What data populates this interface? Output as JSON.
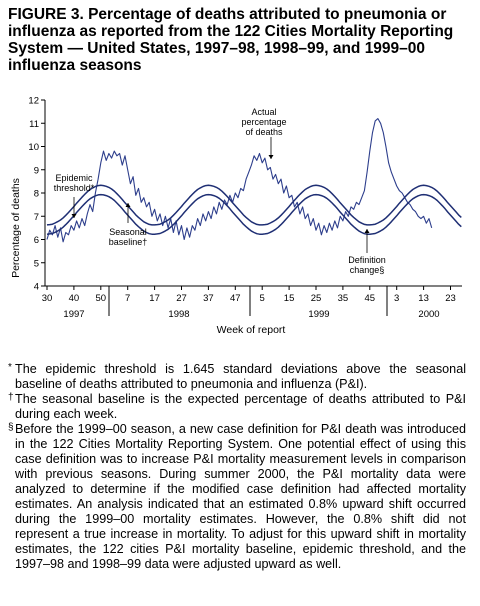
{
  "title": "FIGURE 3. Percentage of deaths attributed to pneumonia or influenza as reported from the 122 Cities Mortality Reporting System — United States, 1997–98, 1998–99, and 1999–00 influenza seasons",
  "chart_data": {
    "type": "line",
    "ylabel": "Percentage of deaths",
    "xlabel": "Week of report",
    "ylim": [
      4,
      12
    ],
    "yticks": [
      4,
      5,
      6,
      7,
      8,
      9,
      10,
      11,
      12
    ],
    "x_tick_labels": [
      "30",
      "40",
      "50",
      "7",
      "17",
      "27",
      "37",
      "47",
      "5",
      "15",
      "25",
      "35",
      "45",
      "3",
      "13",
      "23"
    ],
    "year_labels": [
      "1997",
      "1998",
      "1999",
      "2000"
    ],
    "grid": false,
    "legend": "none",
    "annotations": {
      "epidemic_threshold": [
        "Epidemic",
        "threshold*"
      ],
      "seasonal_baseline": [
        "Seasonal",
        "baseline†"
      ],
      "actual_percentage": [
        "Actual",
        "percentage",
        "of deaths"
      ],
      "definition_change": [
        "Definition",
        "change§"
      ]
    },
    "week_index_start": "1997 week 30",
    "week_index_step": 1,
    "series": [
      {
        "key": "actual",
        "values": [
          6.0,
          6.4,
          6.2,
          6.6,
          6.1,
          6.5,
          5.9,
          6.3,
          6.2,
          6.6,
          6.4,
          6.8,
          6.5,
          6.9,
          6.6,
          7.1,
          7.5,
          7.2,
          8.0,
          8.6,
          9.3,
          9.8,
          9.4,
          9.7,
          9.5,
          9.8,
          9.6,
          9.7,
          9.2,
          9.6,
          9.0,
          8.4,
          8.7,
          7.9,
          8.2,
          7.6,
          7.8,
          7.4,
          7.6,
          7.0,
          7.3,
          6.8,
          7.1,
          6.6,
          7.0,
          6.5,
          6.9,
          6.3,
          6.8,
          6.2,
          6.6,
          6.0,
          6.5,
          6.1,
          6.6,
          6.4,
          6.9,
          6.6,
          7.1,
          6.8,
          7.2,
          6.9,
          7.4,
          7.1,
          7.6,
          7.3,
          7.7,
          7.5,
          7.9,
          7.6,
          8.0,
          7.8,
          8.2,
          8.1,
          8.6,
          8.9,
          9.2,
          9.6,
          9.4,
          9.7,
          9.3,
          9.5,
          9.0,
          9.1,
          8.6,
          8.8,
          8.4,
          8.6,
          8.0,
          8.3,
          7.8,
          7.9,
          7.4,
          7.6,
          7.1,
          7.4,
          6.9,
          7.1,
          6.6,
          6.9,
          6.4,
          6.7,
          6.2,
          6.6,
          6.3,
          6.7,
          6.4,
          6.8,
          6.5,
          7.0,
          6.8,
          7.2,
          7.0,
          7.4,
          7.3,
          7.6,
          7.5,
          7.8,
          8.1,
          8.9,
          9.8,
          10.6,
          11.1,
          11.2,
          11.0,
          10.6,
          10.0,
          9.3,
          8.9,
          8.6,
          8.3,
          8.1,
          8.0,
          7.8,
          7.6,
          7.5,
          7.3,
          7.2,
          7.0,
          6.9,
          7.0,
          6.7,
          6.9,
          6.5
        ]
      },
      {
        "key": "epidemic-threshold",
        "values": [
          6.63,
          6.64,
          6.66,
          6.71,
          6.77,
          6.84,
          6.93,
          7.04,
          7.16,
          7.29,
          7.42,
          7.56,
          7.69,
          7.82,
          7.94,
          8.05,
          8.15,
          8.22,
          8.28,
          8.32,
          8.33,
          8.32,
          8.29,
          8.24,
          8.17,
          8.08,
          7.97,
          7.85,
          7.72,
          7.58,
          7.45,
          7.32,
          7.19,
          7.06,
          6.95,
          6.85,
          6.76,
          6.7,
          6.65,
          6.63,
          6.63,
          6.64,
          6.66,
          6.71,
          6.77,
          6.84,
          6.93,
          7.04,
          7.16,
          7.29,
          7.42,
          7.56,
          7.69,
          7.82,
          7.94,
          8.05,
          8.15,
          8.22,
          8.28,
          8.32,
          8.33,
          8.32,
          8.29,
          8.24,
          8.17,
          8.08,
          7.97,
          7.85,
          7.72,
          7.58,
          7.45,
          7.32,
          7.19,
          7.06,
          6.95,
          6.85,
          6.76,
          6.7,
          6.65,
          6.63,
          6.63,
          6.64,
          6.66,
          6.71,
          6.77,
          6.84,
          6.93,
          7.04,
          7.16,
          7.29,
          7.42,
          7.56,
          7.69,
          7.82,
          7.94,
          8.05,
          8.15,
          8.22,
          8.28,
          8.32,
          8.33,
          8.32,
          8.29,
          8.24,
          8.17,
          8.08,
          7.97,
          7.85,
          7.72,
          7.58,
          7.45,
          7.32,
          7.19,
          7.06,
          6.95,
          6.85,
          6.76,
          6.7,
          6.65,
          6.63,
          6.63,
          6.64,
          6.66,
          6.71,
          6.77,
          6.84,
          6.93,
          7.04,
          7.16,
          7.29,
          7.42,
          7.56,
          7.69,
          7.82,
          7.94,
          8.05,
          8.15,
          8.22,
          8.28,
          8.32,
          8.33,
          8.32,
          8.29,
          8.24,
          8.17,
          8.08,
          7.97,
          7.85,
          7.72,
          7.58,
          7.45,
          7.32,
          7.19,
          7.06,
          6.95
        ]
      },
      {
        "key": "seasonal-baseline",
        "values": [
          6.23,
          6.24,
          6.26,
          6.31,
          6.37,
          6.44,
          6.53,
          6.64,
          6.76,
          6.89,
          7.02,
          7.16,
          7.29,
          7.42,
          7.54,
          7.65,
          7.75,
          7.82,
          7.88,
          7.92,
          7.93,
          7.92,
          7.89,
          7.84,
          7.77,
          7.68,
          7.57,
          7.45,
          7.32,
          7.18,
          7.05,
          6.92,
          6.79,
          6.66,
          6.55,
          6.45,
          6.36,
          6.3,
          6.25,
          6.23,
          6.23,
          6.24,
          6.26,
          6.31,
          6.37,
          6.44,
          6.53,
          6.64,
          6.76,
          6.89,
          7.02,
          7.16,
          7.29,
          7.42,
          7.54,
          7.65,
          7.75,
          7.82,
          7.88,
          7.92,
          7.93,
          7.92,
          7.89,
          7.84,
          7.77,
          7.68,
          7.57,
          7.45,
          7.32,
          7.18,
          7.05,
          6.92,
          6.79,
          6.66,
          6.55,
          6.45,
          6.36,
          6.3,
          6.25,
          6.23,
          6.23,
          6.24,
          6.26,
          6.31,
          6.37,
          6.44,
          6.53,
          6.64,
          6.76,
          6.89,
          7.02,
          7.16,
          7.29,
          7.42,
          7.54,
          7.65,
          7.75,
          7.82,
          7.88,
          7.92,
          7.93,
          7.92,
          7.89,
          7.84,
          7.77,
          7.68,
          7.57,
          7.45,
          7.32,
          7.18,
          7.05,
          6.92,
          6.79,
          6.66,
          6.55,
          6.45,
          6.36,
          6.3,
          6.25,
          6.23,
          6.23,
          6.24,
          6.26,
          6.31,
          6.37,
          6.44,
          6.53,
          6.64,
          6.76,
          6.89,
          7.02,
          7.16,
          7.29,
          7.42,
          7.54,
          7.65,
          7.75,
          7.82,
          7.88,
          7.92,
          7.93,
          7.92,
          7.89,
          7.84,
          7.77,
          7.68,
          7.57,
          7.45,
          7.32,
          7.18,
          7.05,
          6.92,
          6.79,
          6.66,
          6.55
        ]
      }
    ]
  },
  "footnotes": [
    {
      "mark": "*",
      "text": "The epidemic threshold is 1.645 standard deviations above the seasonal baseline of deaths attributed to pneumonia and influenza (P&I)."
    },
    {
      "mark": "†",
      "text": "The seasonal baseline is the expected percentage of deaths attributed to P&I during each week."
    },
    {
      "mark": "§",
      "text": "Before the 1999–00 season, a new case definition for P&I death was introduced in the 122 Cities Mortality Reporting System. One potential effect of using this case definition was to increase P&I mortality measurement levels in comparison with previous seasons. During summer 2000, the P&I mortality data were analyzed to determine if the modified case definition had affected mortality estimates. An analysis indicated that an estimated 0.8% upward shift occurred during the 1999–00 mortality estimates. However, the 0.8% shift did not represent a true increase in mortality. To adjust for this upward shift in mortality estimates, the 122 cities P&I mortality baseline, epidemic threshold, and the 1997–98 and 1998–99 data were adjusted upward as well."
    }
  ]
}
